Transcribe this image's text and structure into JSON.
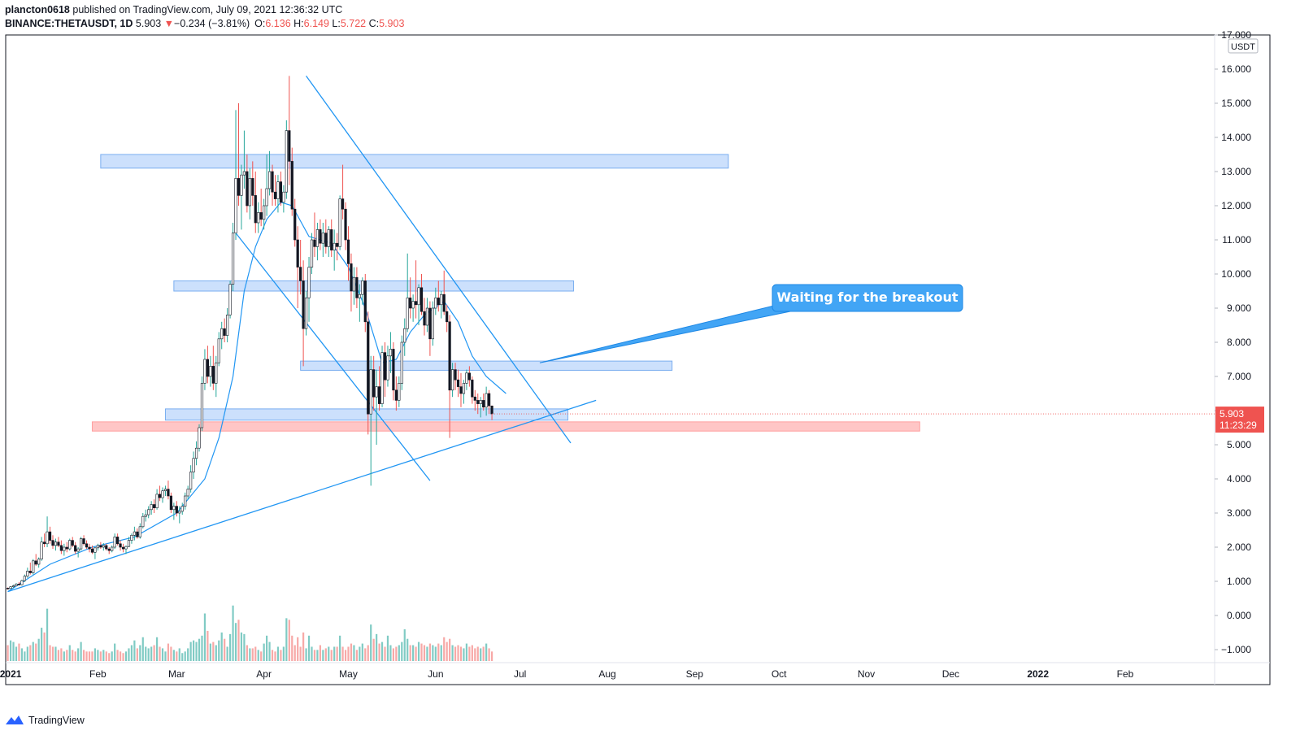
{
  "header": {
    "author": "plancton0618",
    "published_text": "published on TradingView.com, July 09, 2021 12:36:32 UTC",
    "symbol": "BINANCE:THETAUSDT, 1D",
    "last": "5.903",
    "change": "−0.234 (−3.81%)",
    "o_label": "O:",
    "o_value": "6.136",
    "h_label": "H:",
    "h_value": "6.149",
    "l_label": "L:",
    "l_value": "5.722",
    "c_label": "C:",
    "c_value": "5.903"
  },
  "footer": {
    "brand": "TradingView"
  },
  "colors": {
    "up": "#26a69a",
    "down": "#ef5350",
    "line": "#2196f3",
    "zone": "#bbd6fb",
    "support_zone": "#ffb3b3",
    "callout": "#42a5f5"
  },
  "chart_data": {
    "type": "candlestick",
    "price_axis": {
      "unit": "USDT",
      "ylim": [
        -1.3,
        17.0
      ],
      "ticks": [
        "17.000",
        "16.000",
        "15.000",
        "14.000",
        "13.000",
        "12.000",
        "11.000",
        "10.000",
        "9.000",
        "8.000",
        "7.000",
        "6.000",
        "5.000",
        "4.000",
        "3.000",
        "2.000",
        "1.000",
        "0.000",
        "−1.000"
      ],
      "last_price_label": "5.903",
      "countdown_label": "11:23:29"
    },
    "time_axis": {
      "labels": [
        "2021",
        "Feb",
        "Mar",
        "Apr",
        "May",
        "Jun",
        "Jul",
        "Aug",
        "Sep",
        "Oct",
        "Nov",
        "Dec",
        "2022",
        "Feb"
      ]
    },
    "candles": [
      [
        0.8,
        0.82,
        0.76,
        0.79
      ],
      [
        0.79,
        0.86,
        0.77,
        0.84
      ],
      [
        0.84,
        0.9,
        0.8,
        0.87
      ],
      [
        0.87,
        0.95,
        0.85,
        0.92
      ],
      [
        0.92,
        0.98,
        0.88,
        0.9
      ],
      [
        0.9,
        1.05,
        0.88,
        1.02
      ],
      [
        1.02,
        1.2,
        0.98,
        1.15
      ],
      [
        1.15,
        1.4,
        1.1,
        1.3
      ],
      [
        1.3,
        1.55,
        1.2,
        1.25
      ],
      [
        1.25,
        1.65,
        1.2,
        1.6
      ],
      [
        1.6,
        1.8,
        1.45,
        1.5
      ],
      [
        1.5,
        1.7,
        1.4,
        1.65
      ],
      [
        1.65,
        2.3,
        1.6,
        2.15
      ],
      [
        2.15,
        2.4,
        2.0,
        2.1
      ],
      [
        2.1,
        2.9,
        2.0,
        2.45
      ],
      [
        2.45,
        2.6,
        2.1,
        2.2
      ],
      [
        2.2,
        2.35,
        1.95,
        2.05
      ],
      [
        2.05,
        2.25,
        1.9,
        2.15
      ],
      [
        2.15,
        2.3,
        2.0,
        2.05
      ],
      [
        2.05,
        2.2,
        1.8,
        1.9
      ],
      [
        1.9,
        2.1,
        1.75,
        2.0
      ],
      [
        2.0,
        2.15,
        1.85,
        1.95
      ],
      [
        1.95,
        2.25,
        1.9,
        2.2
      ],
      [
        2.2,
        2.3,
        2.0,
        2.05
      ],
      [
        2.05,
        2.15,
        1.8,
        1.88
      ],
      [
        1.88,
        2.0,
        1.7,
        1.95
      ],
      [
        1.95,
        2.3,
        1.9,
        2.25
      ],
      [
        2.25,
        2.35,
        2.05,
        2.1
      ],
      [
        2.1,
        2.2,
        1.95,
        2.0
      ],
      [
        2.0,
        2.1,
        1.85,
        1.95
      ],
      [
        1.95,
        2.05,
        1.8,
        1.85
      ],
      [
        1.85,
        2.0,
        1.65,
        1.98
      ],
      [
        1.98,
        2.1,
        1.9,
        2.05
      ],
      [
        2.05,
        2.15,
        1.95,
        2.0
      ],
      [
        2.0,
        2.12,
        1.9,
        2.05
      ],
      [
        2.05,
        2.1,
        1.9,
        1.95
      ],
      [
        1.95,
        2.0,
        1.8,
        1.9
      ],
      [
        1.9,
        2.05,
        1.85,
        2.0
      ],
      [
        2.0,
        2.4,
        1.95,
        2.3
      ],
      [
        2.3,
        2.4,
        2.05,
        2.1
      ],
      [
        2.1,
        2.2,
        1.9,
        2.0
      ],
      [
        2.0,
        2.1,
        1.85,
        1.95
      ],
      [
        1.95,
        2.05,
        1.8,
        2.02
      ],
      [
        2.02,
        2.3,
        2.0,
        2.2
      ],
      [
        2.2,
        2.4,
        2.1,
        2.35
      ],
      [
        2.35,
        2.6,
        2.2,
        2.45
      ],
      [
        2.45,
        2.55,
        2.25,
        2.3
      ],
      [
        2.3,
        2.7,
        2.25,
        2.6
      ],
      [
        2.6,
        3.0,
        2.55,
        2.9
      ],
      [
        2.9,
        3.1,
        2.75,
        2.95
      ],
      [
        2.95,
        3.2,
        2.85,
        3.1
      ],
      [
        3.1,
        3.35,
        2.95,
        3.25
      ],
      [
        3.25,
        3.4,
        3.0,
        3.15
      ],
      [
        3.15,
        3.7,
        3.1,
        3.55
      ],
      [
        3.55,
        3.8,
        3.35,
        3.45
      ],
      [
        3.45,
        3.75,
        3.3,
        3.65
      ],
      [
        3.65,
        3.8,
        3.5,
        3.7
      ],
      [
        3.7,
        3.95,
        3.4,
        3.5
      ],
      [
        3.5,
        3.6,
        3.0,
        3.1
      ],
      [
        3.1,
        3.3,
        2.8,
        3.2
      ],
      [
        3.2,
        3.35,
        2.9,
        3.0
      ],
      [
        3.0,
        3.2,
        2.7,
        3.05
      ],
      [
        3.05,
        3.3,
        2.95,
        3.2
      ],
      [
        3.2,
        3.6,
        3.1,
        3.5
      ],
      [
        3.5,
        3.8,
        3.4,
        3.7
      ],
      [
        3.7,
        4.4,
        3.6,
        4.2
      ],
      [
        4.2,
        4.8,
        4.0,
        4.6
      ],
      [
        4.6,
        5.1,
        4.4,
        4.9
      ],
      [
        4.9,
        5.6,
        4.8,
        5.5
      ],
      [
        5.5,
        7.0,
        5.4,
        6.8
      ],
      [
        6.8,
        7.8,
        6.6,
        7.5
      ],
      [
        7.5,
        7.9,
        6.8,
        7.0
      ],
      [
        7.0,
        7.6,
        6.7,
        7.3
      ],
      [
        7.3,
        7.9,
        6.6,
        6.8
      ],
      [
        6.8,
        7.6,
        6.4,
        7.4
      ],
      [
        7.4,
        8.3,
        7.3,
        8.1
      ],
      [
        8.1,
        8.6,
        7.8,
        8.4
      ],
      [
        8.4,
        8.7,
        8.0,
        8.2
      ],
      [
        8.2,
        9.0,
        8.0,
        8.8
      ],
      [
        8.8,
        9.8,
        8.7,
        9.7
      ],
      [
        9.7,
        11.5,
        9.5,
        11.2
      ],
      [
        11.2,
        14.8,
        11.0,
        12.8
      ],
      [
        12.8,
        15.0,
        12.0,
        12.3
      ],
      [
        12.3,
        13.2,
        11.3,
        12.9
      ],
      [
        12.9,
        14.2,
        12.5,
        13.0
      ],
      [
        13.0,
        13.5,
        11.8,
        12.0
      ],
      [
        12.0,
        13.1,
        11.6,
        12.8
      ],
      [
        12.8,
        13.3,
        12.0,
        12.3
      ],
      [
        12.3,
        13.0,
        11.2,
        11.5
      ],
      [
        11.5,
        12.1,
        11.2,
        11.8
      ],
      [
        11.8,
        12.5,
        11.4,
        11.6
      ],
      [
        11.6,
        12.2,
        11.3,
        12.0
      ],
      [
        12.0,
        13.5,
        11.7,
        12.5
      ],
      [
        12.5,
        13.6,
        12.3,
        13.0
      ],
      [
        13.0,
        13.2,
        12.0,
        12.4
      ],
      [
        12.4,
        12.9,
        12.0,
        12.2
      ],
      [
        12.2,
        12.9,
        11.8,
        12.7
      ],
      [
        12.7,
        13.0,
        12.0,
        12.1
      ],
      [
        12.1,
        12.6,
        11.8,
        12.4
      ],
      [
        12.4,
        14.5,
        12.2,
        14.2
      ],
      [
        14.2,
        15.8,
        12.6,
        13.3
      ],
      [
        13.3,
        13.7,
        11.7,
        11.9
      ],
      [
        11.9,
        12.2,
        10.8,
        11.0
      ],
      [
        11.0,
        11.4,
        9.0,
        10.2
      ],
      [
        10.2,
        11.0,
        9.4,
        9.8
      ],
      [
        9.8,
        10.4,
        7.3,
        8.4
      ],
      [
        8.4,
        9.5,
        8.2,
        9.3
      ],
      [
        9.3,
        10.5,
        8.6,
        10.2
      ],
      [
        10.2,
        11.2,
        10.0,
        11.0
      ],
      [
        11.0,
        11.8,
        10.5,
        10.8
      ],
      [
        10.8,
        11.5,
        10.4,
        11.3
      ],
      [
        11.3,
        11.6,
        10.7,
        10.9
      ],
      [
        10.9,
        11.5,
        10.5,
        11.2
      ],
      [
        11.2,
        11.6,
        10.6,
        10.8
      ],
      [
        10.8,
        11.4,
        10.5,
        11.3
      ],
      [
        11.3,
        11.6,
        10.5,
        10.7
      ],
      [
        10.7,
        11.3,
        10.1,
        10.9
      ],
      [
        10.9,
        11.2,
        10.4,
        10.8
      ],
      [
        10.8,
        12.3,
        10.7,
        12.2
      ],
      [
        12.2,
        13.2,
        11.6,
        11.9
      ],
      [
        11.9,
        12.1,
        10.7,
        11.0
      ],
      [
        11.0,
        11.4,
        9.8,
        10.3
      ],
      [
        10.3,
        10.6,
        8.9,
        9.5
      ],
      [
        9.5,
        10.2,
        9.1,
        9.9
      ],
      [
        9.9,
        10.2,
        9.0,
        9.3
      ],
      [
        9.3,
        9.7,
        8.6,
        9.4
      ],
      [
        9.4,
        9.9,
        9.1,
        9.8
      ],
      [
        9.8,
        10.0,
        8.3,
        8.6
      ],
      [
        8.6,
        8.9,
        5.3,
        5.9
      ],
      [
        5.9,
        7.6,
        3.8,
        7.2
      ],
      [
        7.2,
        7.6,
        6.0,
        6.4
      ],
      [
        6.4,
        7.2,
        5.0,
        6.7
      ],
      [
        6.7,
        7.3,
        6.0,
        6.2
      ],
      [
        6.2,
        7.9,
        6.1,
        7.7
      ],
      [
        7.7,
        8.0,
        6.4,
        6.9
      ],
      [
        6.9,
        7.9,
        6.7,
        7.6
      ],
      [
        7.6,
        8.3,
        7.1,
        7.8
      ],
      [
        7.8,
        8.0,
        6.3,
        6.6
      ],
      [
        6.6,
        7.0,
        6.0,
        6.3
      ],
      [
        6.3,
        7.0,
        6.1,
        6.8
      ],
      [
        6.8,
        8.2,
        6.6,
        8.0
      ],
      [
        8.0,
        8.7,
        7.6,
        8.4
      ],
      [
        8.4,
        10.6,
        8.3,
        9.3
      ],
      [
        9.3,
        9.9,
        8.7,
        9.0
      ],
      [
        9.0,
        9.4,
        8.6,
        9.2
      ],
      [
        9.2,
        10.4,
        8.7,
        9.1
      ],
      [
        9.1,
        9.7,
        8.5,
        9.6
      ],
      [
        9.6,
        10.0,
        8.8,
        8.9
      ],
      [
        8.9,
        9.3,
        8.2,
        8.5
      ],
      [
        8.5,
        9.3,
        8.3,
        9.0
      ],
      [
        9.0,
        9.2,
        7.6,
        8.1
      ],
      [
        8.1,
        9.2,
        7.9,
        9.0
      ],
      [
        9.0,
        9.6,
        8.8,
        9.3
      ],
      [
        9.3,
        9.8,
        8.9,
        9.1
      ],
      [
        9.1,
        9.5,
        8.7,
        9.4
      ],
      [
        9.4,
        10.1,
        8.8,
        8.9
      ],
      [
        8.9,
        9.1,
        8.3,
        8.6
      ],
      [
        8.6,
        8.8,
        5.2,
        6.6
      ],
      [
        6.6,
        7.4,
        6.4,
        7.2
      ],
      [
        7.2,
        7.4,
        6.6,
        6.9
      ],
      [
        6.9,
        7.2,
        6.4,
        6.7
      ],
      [
        6.7,
        7.1,
        6.1,
        6.5
      ],
      [
        6.5,
        6.9,
        6.2,
        6.8
      ],
      [
        6.8,
        7.2,
        6.6,
        7.1
      ],
      [
        7.1,
        7.3,
        6.7,
        6.9
      ],
      [
        6.9,
        7.0,
        6.2,
        6.4
      ],
      [
        6.4,
        6.6,
        6.0,
        6.3
      ],
      [
        6.3,
        6.5,
        5.9,
        6.2
      ],
      [
        6.2,
        6.4,
        5.8,
        6.3
      ],
      [
        6.3,
        6.5,
        6.0,
        6.1
      ],
      [
        6.1,
        6.7,
        5.85,
        6.5
      ],
      [
        6.5,
        6.6,
        5.9,
        6.14
      ],
      [
        6.136,
        6.149,
        5.722,
        5.903
      ]
    ],
    "volume": [
      10,
      13,
      12,
      9,
      11,
      8,
      6,
      9,
      10,
      12,
      11,
      14,
      21,
      18,
      33,
      10,
      9,
      9,
      7,
      8,
      6,
      7,
      10,
      7,
      6,
      8,
      12,
      7,
      6,
      6,
      6,
      8,
      7,
      6,
      7,
      6,
      5,
      6,
      11,
      7,
      6,
      5,
      6,
      8,
      10,
      13,
      8,
      10,
      15,
      9,
      8,
      9,
      10,
      15,
      9,
      8,
      6,
      11,
      9,
      7,
      6,
      8,
      5,
      6,
      8,
      12,
      13,
      12,
      14,
      16,
      30,
      19,
      11,
      12,
      10,
      13,
      18,
      14,
      9,
      17,
      35,
      24,
      26,
      18,
      17,
      10,
      8,
      8,
      9,
      7,
      6,
      11,
      16,
      12,
      7,
      6,
      9,
      7,
      9,
      27,
      26,
      16,
      10,
      15,
      9,
      18,
      8,
      16,
      9,
      7,
      7,
      10,
      7,
      8,
      9,
      7,
      9,
      9,
      16,
      9,
      7,
      9,
      11,
      10,
      7,
      9,
      11,
      8,
      10,
      23,
      14,
      17,
      11,
      12,
      9,
      16,
      10,
      8,
      9,
      10,
      12,
      20,
      14,
      10,
      10,
      9,
      12,
      11,
      10,
      9,
      11,
      10,
      9,
      11,
      10,
      15,
      12,
      14,
      10,
      9,
      10,
      9,
      8,
      11,
      9,
      10,
      8,
      9,
      8,
      9,
      11,
      8,
      6
    ],
    "moving_average": {
      "knots": [
        [
          0,
          0.7
        ],
        [
          15,
          1.5
        ],
        [
          30,
          2.0
        ],
        [
          45,
          2.3
        ],
        [
          60,
          3.0
        ],
        [
          70,
          4.0
        ],
        [
          75,
          5.2
        ],
        [
          80,
          7.0
        ],
        [
          84,
          9.5
        ],
        [
          88,
          10.8
        ],
        [
          92,
          11.6
        ],
        [
          97,
          12.1
        ],
        [
          101,
          12.0
        ],
        [
          107,
          11.1
        ],
        [
          115,
          10.9
        ],
        [
          121,
          10.2
        ],
        [
          127,
          9.0
        ],
        [
          133,
          7.4
        ],
        [
          138,
          7.5
        ],
        [
          143,
          8.3
        ],
        [
          148,
          8.8
        ],
        [
          155,
          9.2
        ],
        [
          160,
          8.6
        ],
        [
          165,
          7.6
        ],
        [
          170,
          7.0
        ],
        [
          177,
          6.5
        ]
      ]
    },
    "trendlines": [
      {
        "from": [
          "2020-12-31",
          0.7
        ],
        "to": [
          "2021-07-28",
          6.3
        ]
      },
      {
        "from": [
          "2021-04-16",
          15.8
        ],
        "to": [
          "2021-07-19",
          5.05
        ]
      },
      {
        "from": [
          "2021-03-22",
          11.2
        ],
        "to": [
          "2021-05-30",
          3.95
        ]
      }
    ],
    "zones": [
      {
        "from": "2021-02-02",
        "to": "2021-09-13",
        "top": 13.5,
        "bottom": 13.1,
        "color": "#bbd6fb"
      },
      {
        "from": "2021-02-28",
        "to": "2021-07-20",
        "top": 9.8,
        "bottom": 9.5,
        "color": "#bbd6fb"
      },
      {
        "from": "2021-04-14",
        "to": "2021-08-24",
        "top": 7.45,
        "bottom": 7.18,
        "color": "#bbd6fb"
      },
      {
        "from": "2021-02-25",
        "to": "2021-07-18",
        "top": 6.05,
        "bottom": 5.72,
        "color": "#bbd6fb"
      },
      {
        "from": "2021-01-30",
        "to": "2021-11-20",
        "top": 5.67,
        "bottom": 5.4,
        "color": "#ffb3b3"
      }
    ],
    "annotations": [
      {
        "text": "Waiting for the breakout",
        "target": [
          "2021-07-08",
          7.4
        ]
      }
    ]
  }
}
